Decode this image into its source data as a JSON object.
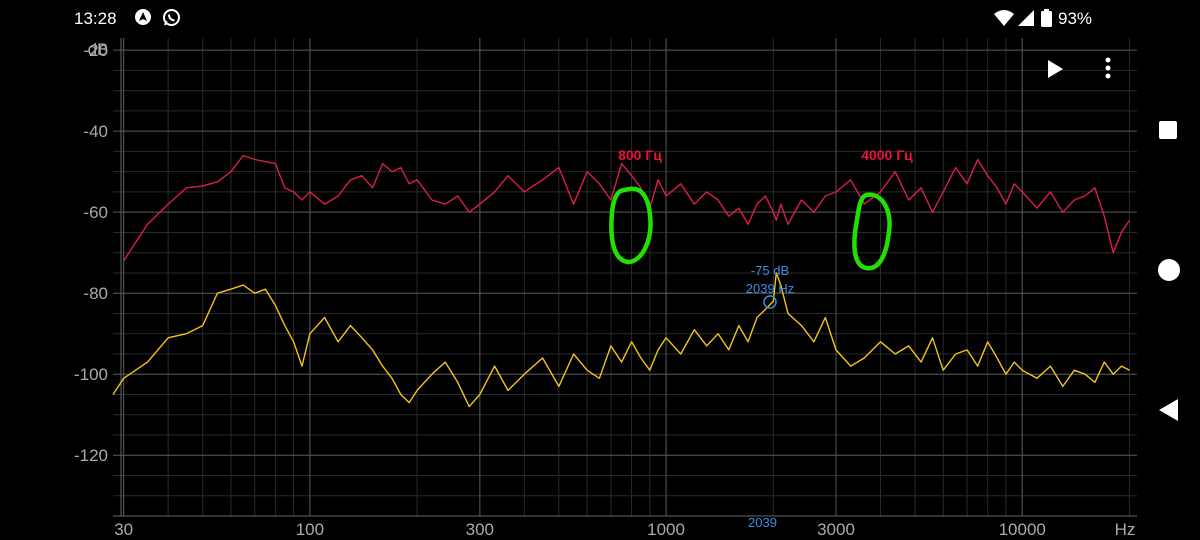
{
  "status_bar": {
    "time": "13:28",
    "battery_percent": "93%",
    "icons": [
      "navigation-icon",
      "whatsapp-icon",
      "wifi-icon",
      "signal-icon",
      "battery-icon"
    ]
  },
  "toolbar": {
    "play_icon": "play-icon",
    "menu_icon": "more-vert-icon"
  },
  "annotations": {
    "label_800": "800 Гц",
    "label_4000": "4000 Гц",
    "label_color": "#e8123c",
    "circle_color": "#22e000"
  },
  "cursor": {
    "db_text": "-75 dB",
    "hz_text": "2039 Hz",
    "axis_marker": "2039",
    "frequency_hz": 2039,
    "level_db": -75,
    "color": "#3b8ede"
  },
  "navigation": {
    "icons": [
      "recent-apps-icon",
      "home-icon",
      "back-icon"
    ]
  },
  "chart_data": {
    "type": "line",
    "xscale": "log",
    "xlim": [
      28,
      21000
    ],
    "ylim": [
      -135,
      -17
    ],
    "x_unit_label": "Hz",
    "y_unit_label": "dB",
    "x_ticks": [
      {
        "value": 30,
        "label": "30"
      },
      {
        "value": 100,
        "label": "100"
      },
      {
        "value": 300,
        "label": "300"
      },
      {
        "value": 1000,
        "label": "1000"
      },
      {
        "value": 3000,
        "label": "3000"
      },
      {
        "value": 10000,
        "label": "10000"
      }
    ],
    "y_ticks": [
      {
        "value": -20,
        "label": "-20"
      },
      {
        "value": -40,
        "label": "-40"
      },
      {
        "value": -60,
        "label": "-60"
      },
      {
        "value": -80,
        "label": "-80"
      },
      {
        "value": -100,
        "label": "-100"
      },
      {
        "value": -120,
        "label": "-120"
      }
    ],
    "grid": true,
    "series": [
      {
        "color": "#d81f46",
        "x": [
          30,
          35,
          40,
          45,
          50,
          55,
          60,
          65,
          70,
          75,
          80,
          85,
          90,
          95,
          100,
          110,
          120,
          130,
          140,
          150,
          160,
          170,
          180,
          190,
          200,
          220,
          240,
          260,
          280,
          300,
          330,
          360,
          400,
          450,
          500,
          550,
          600,
          650,
          700,
          750,
          800,
          850,
          900,
          950,
          1000,
          1100,
          1200,
          1300,
          1400,
          1500,
          1600,
          1700,
          1800,
          1900,
          2000,
          2039,
          2100,
          2200,
          2400,
          2600,
          2800,
          3000,
          3300,
          3600,
          4000,
          4400,
          4800,
          5200,
          5600,
          6000,
          6500,
          7000,
          7500,
          8000,
          8500,
          9000,
          9500,
          10000,
          11000,
          12000,
          13000,
          14000,
          15000,
          16000,
          17000,
          18000,
          19000,
          20000
        ],
        "values": [
          -72,
          -63,
          -58,
          -54,
          -53.5,
          -52.5,
          -50,
          -46,
          -47,
          -47.5,
          -48,
          -54,
          -55,
          -57,
          -55,
          -58,
          -56,
          -52,
          -51,
          -54,
          -48,
          -50,
          -49,
          -53,
          -52,
          -57,
          -58,
          -56,
          -60,
          -58,
          -55,
          -51,
          -55,
          -52,
          -49,
          -58,
          -50,
          -53,
          -57,
          -48,
          -51,
          -54,
          -59,
          -52,
          -56,
          -53,
          -58,
          -55,
          -57,
          -61,
          -59,
          -63,
          -58,
          -56,
          -60,
          -62,
          -58,
          -63,
          -57,
          -60,
          -56,
          -55,
          -52,
          -58,
          -55,
          -50,
          -57,
          -54,
          -60,
          -55,
          -49,
          -53,
          -47,
          -51,
          -54,
          -58,
          -53,
          -55,
          -59,
          -55,
          -60,
          -57,
          -56,
          -54,
          -61,
          -70,
          -65,
          -62
        ]
      },
      {
        "color": "#f0c419",
        "x": [
          28,
          30,
          35,
          40,
          45,
          50,
          55,
          60,
          65,
          70,
          75,
          80,
          85,
          90,
          95,
          100,
          110,
          120,
          130,
          140,
          150,
          160,
          170,
          180,
          190,
          200,
          220,
          240,
          260,
          280,
          300,
          330,
          360,
          400,
          450,
          500,
          550,
          600,
          650,
          700,
          750,
          800,
          850,
          900,
          950,
          1000,
          1100,
          1200,
          1300,
          1400,
          1500,
          1600,
          1700,
          1800,
          1900,
          2000,
          2039,
          2100,
          2200,
          2400,
          2600,
          2800,
          3000,
          3300,
          3600,
          4000,
          4400,
          4800,
          5200,
          5600,
          6000,
          6500,
          7000,
          7500,
          8000,
          8500,
          9000,
          9500,
          10000,
          11000,
          12000,
          13000,
          14000,
          15000,
          16000,
          17000,
          18000,
          19000,
          20000
        ],
        "values": [
          -105,
          -101,
          -97,
          -91,
          -90,
          -88,
          -80,
          -79,
          -78,
          -80,
          -79,
          -83,
          -88,
          -92,
          -98,
          -90,
          -86,
          -92,
          -88,
          -91,
          -94,
          -98,
          -101,
          -105,
          -107,
          -104,
          -100,
          -97,
          -102,
          -108,
          -105,
          -98,
          -104,
          -100,
          -96,
          -103,
          -95,
          -99,
          -101,
          -93,
          -97,
          -92,
          -96,
          -99,
          -94,
          -91,
          -95,
          -89,
          -93,
          -90,
          -94,
          -88,
          -92,
          -86,
          -84,
          -82,
          -75,
          -78,
          -85,
          -88,
          -92,
          -86,
          -94,
          -98,
          -96,
          -92,
          -95,
          -93,
          -97,
          -91,
          -99,
          -95,
          -94,
          -98,
          -92,
          -96,
          -100,
          -97,
          -99,
          -101,
          -98,
          -103,
          -99,
          -100,
          -102,
          -97,
          -100,
          -98,
          -99
        ]
      }
    ]
  }
}
